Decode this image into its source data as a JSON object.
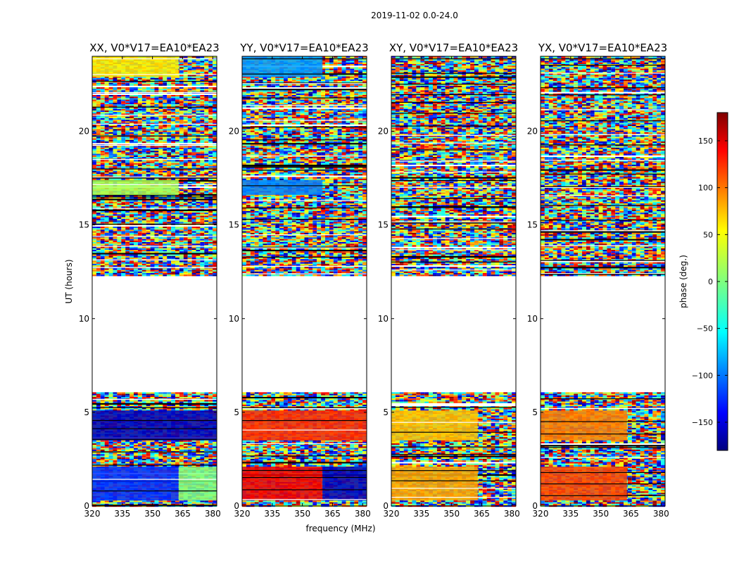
{
  "figure": {
    "suptitle": "2019-11-02 0.0-24.0",
    "xlabel": "frequency (MHz)",
    "ylabel": "UT (hours)"
  },
  "colorbar": {
    "label": "phase (deg.)",
    "range": [
      -180,
      180
    ],
    "ticks": [
      150,
      100,
      50,
      0,
      -50,
      -100,
      -150
    ],
    "tick_labels": [
      "150",
      "100",
      "50",
      "0",
      "−50",
      "−100",
      "−150"
    ],
    "colormap": [
      "#00007f",
      "#0000ff",
      "#00ffff",
      "#7fff7f",
      "#ffff00",
      "#ff0000",
      "#7f0000"
    ]
  },
  "chart_data": [
    {
      "type": "heatmap",
      "title": "XX, V0*V17=EA10*EA23",
      "xlim": [
        320,
        382
      ],
      "ylim": [
        0,
        24
      ],
      "xticks": [
        320,
        335,
        350,
        365,
        380
      ],
      "yticks": [
        0,
        5,
        10,
        15,
        20
      ],
      "no_data_ut_range": [
        6.1,
        12.3
      ],
      "regions": [
        {
          "ut": [
            0.3,
            2.1
          ],
          "freq": [
            320,
            363
          ],
          "phase_deg": -120
        },
        {
          "ut": [
            0.3,
            2.1
          ],
          "freq": [
            363,
            382
          ],
          "phase_deg": 0
        },
        {
          "ut": [
            3.5,
            5.1
          ],
          "freq": [
            320,
            382
          ],
          "phase_deg": -160
        },
        {
          "ut": [
            16.6,
            17.4
          ],
          "freq": [
            320,
            363
          ],
          "phase_deg": 15
        },
        {
          "ut": [
            22.9,
            24.0
          ],
          "freq": [
            320,
            363
          ],
          "phase_deg": 50
        }
      ]
    },
    {
      "type": "heatmap",
      "title": "YY, V0*V17=EA10*EA23",
      "xlim": [
        320,
        382
      ],
      "ylim": [
        0,
        24
      ],
      "xticks": [
        320,
        335,
        350,
        365,
        380
      ],
      "yticks": [
        0,
        5,
        10,
        15,
        20
      ],
      "no_data_ut_range": [
        6.1,
        12.3
      ],
      "regions": [
        {
          "ut": [
            0.3,
            2.1
          ],
          "freq": [
            320,
            360
          ],
          "phase_deg": 140
        },
        {
          "ut": [
            0.3,
            2.1
          ],
          "freq": [
            360,
            382
          ],
          "phase_deg": -160
        },
        {
          "ut": [
            3.5,
            5.1
          ],
          "freq": [
            320,
            382
          ],
          "phase_deg": 120
        },
        {
          "ut": [
            16.6,
            17.4
          ],
          "freq": [
            320,
            360
          ],
          "phase_deg": -90
        },
        {
          "ut": [
            22.9,
            24.0
          ],
          "freq": [
            320,
            360
          ],
          "phase_deg": -80
        }
      ]
    },
    {
      "type": "heatmap",
      "title": "XY, V0*V17=EA10*EA23",
      "xlim": [
        320,
        382
      ],
      "ylim": [
        0,
        24
      ],
      "xticks": [
        320,
        335,
        350,
        365,
        380
      ],
      "yticks": [
        0,
        5,
        10,
        15,
        20
      ],
      "no_data_ut_range": [
        6.1,
        12.3
      ],
      "regions": [
        {
          "ut": [
            0.3,
            2.1
          ],
          "freq": [
            320,
            363
          ],
          "phase_deg": 75
        },
        {
          "ut": [
            3.5,
            5.1
          ],
          "freq": [
            320,
            363
          ],
          "phase_deg": 65
        }
      ]
    },
    {
      "type": "heatmap",
      "title": "YX, V0*V17=EA10*EA23",
      "xlim": [
        320,
        382
      ],
      "ylim": [
        0,
        24
      ],
      "xticks": [
        320,
        335,
        350,
        365,
        380
      ],
      "yticks": [
        0,
        5,
        10,
        15,
        20
      ],
      "no_data_ut_range": [
        6.1,
        12.3
      ],
      "regions": [
        {
          "ut": [
            0.3,
            2.1
          ],
          "freq": [
            320,
            363
          ],
          "phase_deg": 110
        },
        {
          "ut": [
            3.5,
            5.1
          ],
          "freq": [
            320,
            363
          ],
          "phase_deg": 90
        }
      ]
    }
  ]
}
